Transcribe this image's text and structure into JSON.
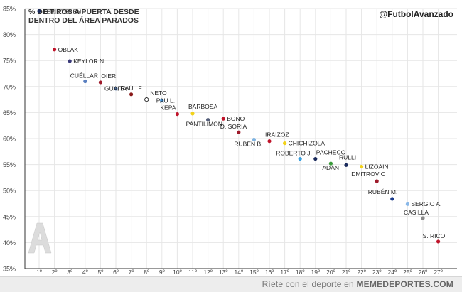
{
  "chart_data": {
    "type": "scatter",
    "title_lines": [
      "% DE TIROS A PUERTA DESDE",
      "DENTRO DEL ÁREA PARADOS"
    ],
    "source": "@FutbolAvanzado",
    "ylim": [
      35,
      85
    ],
    "yticks": [
      "35%",
      "40%",
      "45%",
      "50%",
      "55%",
      "60%",
      "65%",
      "70%",
      "75%",
      "80%",
      "85%"
    ],
    "xticks": [
      "1º",
      "2º",
      "3º",
      "4º",
      "5º",
      "6º",
      "7º",
      "8º",
      "9º",
      "10º",
      "11º",
      "12º",
      "13º",
      "14º",
      "15º",
      "16º",
      "17º",
      "18º",
      "19º",
      "20º",
      "21º",
      "22º",
      "23º",
      "24º",
      "25º",
      "26º",
      "27º"
    ],
    "grid": true,
    "points": [
      {
        "label": "TER STEGEN",
        "x": 1,
        "y": 84.5,
        "color": "#1a2a5c"
      },
      {
        "label": "OBLAK",
        "x": 2,
        "y": 77.1,
        "color": "#c0142a"
      },
      {
        "label": "KEYLOR N.",
        "x": 3,
        "y": 74.9,
        "color": "#3a3a7a"
      },
      {
        "label": "CUÉLLAR",
        "x": 4,
        "y": 71.0,
        "color": "#5a7fc0"
      },
      {
        "label": "OIER",
        "x": 5,
        "y": 70.8,
        "color": "#9e1a2a"
      },
      {
        "label": "GUAITA",
        "x": 6,
        "y": 69.6,
        "color": "#4a6fa5"
      },
      {
        "label": "RAÚL F.",
        "x": 7,
        "y": 68.5,
        "color": "#8a1a1a"
      },
      {
        "label": "NETO",
        "x": 8,
        "y": 67.5,
        "color": "#ffffff"
      },
      {
        "label": "PAU L.",
        "x": 9,
        "y": 67.3,
        "color": "#3a8fd8"
      },
      {
        "label": "KEPA",
        "x": 10,
        "y": 64.7,
        "color": "#c0142a"
      },
      {
        "label": "BARBOSA",
        "x": 11,
        "y": 64.8,
        "color": "#f2d21a"
      },
      {
        "label": "PANTILIMON",
        "x": 12,
        "y": 63.6,
        "color": "#555f7a"
      },
      {
        "label": "BONO",
        "x": 13,
        "y": 63.8,
        "color": "#c0142a"
      },
      {
        "label": "D. SORIA",
        "x": 14,
        "y": 61.2,
        "color": "#9e1a2a"
      },
      {
        "label": "RUBÉN B.",
        "x": 15,
        "y": 59.8,
        "color": "#7fb3e0"
      },
      {
        "label": "IRAIZOZ",
        "x": 16,
        "y": 59.5,
        "color": "#c0142a"
      },
      {
        "label": "CHICHIZOLA",
        "x": 17,
        "y": 59.1,
        "color": "#f2d21a"
      },
      {
        "label": "ROBERTO J.",
        "x": 18,
        "y": 56.1,
        "color": "#3aa0e0"
      },
      {
        "label": "PACHECO",
        "x": 19,
        "y": 56.1,
        "color": "#1a2a5c"
      },
      {
        "label": "ADÁN",
        "x": 20,
        "y": 55.2,
        "color": "#3a9a3a"
      },
      {
        "label": "RULLI",
        "x": 21,
        "y": 54.9,
        "color": "#1a2a5c"
      },
      {
        "label": "LIZOAIN",
        "x": 22,
        "y": 54.6,
        "color": "#f2d21a"
      },
      {
        "label": "DMITROVIC",
        "x": 23,
        "y": 51.8,
        "color": "#9e1a2a"
      },
      {
        "label": "RUBÉN M.",
        "x": 24,
        "y": 48.4,
        "color": "#1a3a8a"
      },
      {
        "label": "SERGIO A.",
        "x": 25,
        "y": 47.4,
        "color": "#8ab8e8"
      },
      {
        "label": "CASILLA",
        "x": 26,
        "y": 44.7,
        "color": "#8a8a8a"
      },
      {
        "label": "S. RICO",
        "x": 27,
        "y": 40.2,
        "color": "#c0142a"
      }
    ]
  },
  "footer": {
    "text": "Ríete con el deporte en ",
    "brand": "MEMEDEPORTES.COM"
  }
}
